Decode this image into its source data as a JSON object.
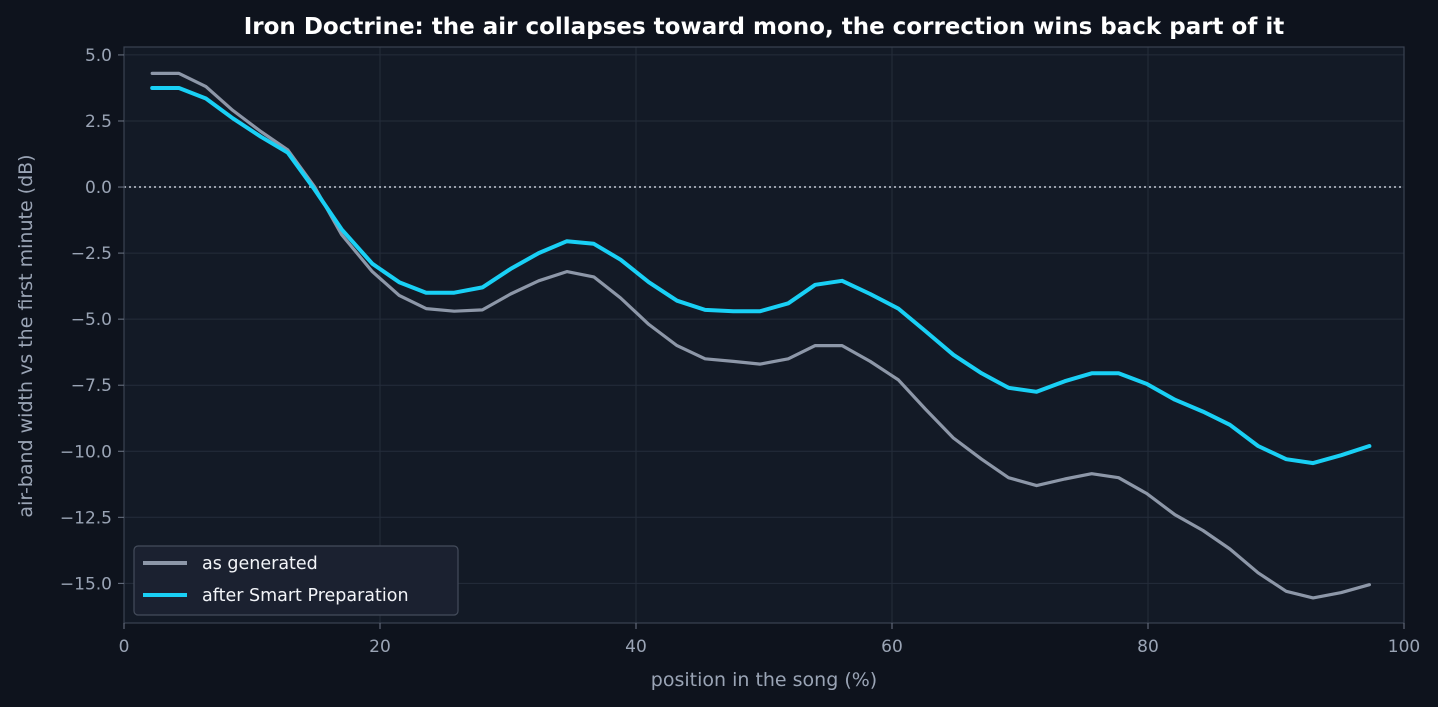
{
  "chart_data": {
    "type": "line",
    "title": "Iron Doctrine: the air collapses toward mono, the correction wins back part of it",
    "xlabel": "position in the song (%)",
    "ylabel": "air-band width vs the first minute (dB)",
    "xlim": [
      0,
      100
    ],
    "ylim": [
      -16.5,
      5.3
    ],
    "xticks": [
      0,
      20,
      40,
      60,
      80,
      100
    ],
    "xtick_labels": [
      "0",
      "20",
      "40",
      "60",
      "80",
      "100"
    ],
    "yticks": [
      5.0,
      2.5,
      0.0,
      -2.5,
      -5.0,
      -7.5,
      -10.0,
      -12.5,
      -15.0
    ],
    "ytick_labels": [
      "5.0",
      "2.5",
      "0.0",
      "−2.5",
      "−5.0",
      "−7.5",
      "−10.0",
      "−12.5",
      "−15.0"
    ],
    "grid": true,
    "reference_line": {
      "y": 0.0,
      "style": "dotted"
    },
    "legend_position": "lower-left",
    "x": [
      2.2,
      4.3,
      6.4,
      8.5,
      10.7,
      12.8,
      14.9,
      17.0,
      19.4,
      21.5,
      23.6,
      25.8,
      28.0,
      30.2,
      32.4,
      34.6,
      36.7,
      38.8,
      41.0,
      43.2,
      45.4,
      47.6,
      49.7,
      51.9,
      54.0,
      56.1,
      58.3,
      60.5,
      62.6,
      64.8,
      67.0,
      69.1,
      71.3,
      73.5,
      75.6,
      77.7,
      79.9,
      82.1,
      84.3,
      86.4,
      88.6,
      90.8,
      92.9,
      95.1,
      97.3
    ],
    "series": [
      {
        "name": "as generated",
        "color": "#8d97a8",
        "values": [
          4.3,
          4.3,
          3.8,
          2.9,
          2.1,
          1.4,
          0.0,
          -1.8,
          -3.2,
          -4.1,
          -4.6,
          -4.7,
          -4.65,
          -4.05,
          -3.55,
          -3.2,
          -3.4,
          -4.2,
          -5.2,
          -6.0,
          -6.5,
          -6.6,
          -6.7,
          -6.5,
          -6.0,
          -6.0,
          -6.6,
          -7.3,
          -8.4,
          -9.5,
          -10.3,
          -11.0,
          -11.3,
          -11.05,
          -10.85,
          -11.0,
          -11.6,
          -12.4,
          -13.0,
          -13.7,
          -14.6,
          -15.3,
          -15.55,
          -15.35,
          -15.05
        ]
      },
      {
        "name": "after Smart Preparation",
        "color": "#19d0f5",
        "values": [
          3.75,
          3.75,
          3.35,
          2.6,
          1.9,
          1.3,
          -0.1,
          -1.6,
          -2.9,
          -3.6,
          -4.0,
          -4.0,
          -3.8,
          -3.1,
          -2.5,
          -2.05,
          -2.15,
          -2.75,
          -3.6,
          -4.3,
          -4.65,
          -4.7,
          -4.7,
          -4.4,
          -3.7,
          -3.55,
          -4.05,
          -4.6,
          -5.45,
          -6.35,
          -7.05,
          -7.6,
          -7.75,
          -7.35,
          -7.05,
          -7.05,
          -7.45,
          -8.05,
          -8.5,
          -9.0,
          -9.8,
          -10.3,
          -10.45,
          -10.15,
          -9.8
        ]
      }
    ]
  }
}
